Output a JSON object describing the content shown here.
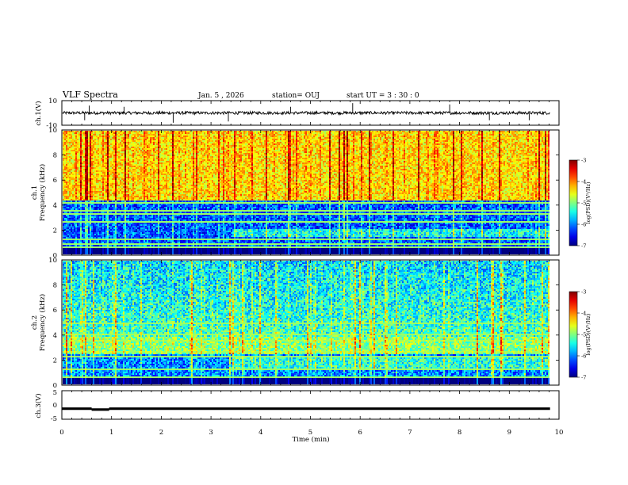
{
  "header": {
    "title": "VLF Spectra",
    "date": "Jan. 5 , 2026",
    "station": "station= OUJ",
    "start": "start  UT  =   3  : 30 : 0"
  },
  "chart_data": [
    {
      "type": "line",
      "name": "ch1-waveform",
      "ylabel": "ch.1(V)",
      "ylim": [
        -10,
        10
      ],
      "ytick_labels": [
        "10",
        "-10"
      ],
      "xlim": [
        0,
        10
      ],
      "baseline": 0,
      "noise_amplitude": 1.2,
      "spikes": [
        {
          "t": 0.46,
          "v": -6
        },
        {
          "t": 0.55,
          "v": 6
        },
        {
          "t": 1.25,
          "v": 5
        },
        {
          "t": 2.24,
          "v": -8
        },
        {
          "t": 3.35,
          "v": -7
        },
        {
          "t": 4.6,
          "v": 5
        },
        {
          "t": 5.85,
          "v": 8
        },
        {
          "t": 7.8,
          "v": 7
        },
        {
          "t": 8.6,
          "v": -6
        },
        {
          "t": 9.4,
          "v": -6
        }
      ]
    },
    {
      "type": "heatmap",
      "name": "ch1-spectrogram",
      "ylabel_lines": [
        "ch.1",
        "Frequency  (kHz)"
      ],
      "ylim": [
        0,
        10
      ],
      "yticks": [
        0,
        2,
        4,
        6,
        8,
        10
      ],
      "xlim": [
        0,
        9.82
      ],
      "colorbar": {
        "min": -7,
        "max": -3,
        "ticks": [
          -3,
          -4,
          -5,
          -6,
          -7
        ],
        "label": "log(PSD)(V²/Hz)"
      },
      "description_levels": {
        "hiss_band_khz": [
          4.3,
          10
        ],
        "hiss_level": -4.4,
        "low_band_level": -6.2,
        "sferic_level": -3.6,
        "lines_khz": [
          0.5,
          0.8,
          1.2,
          2.6,
          3.3,
          3.5,
          4.2
        ]
      }
    },
    {
      "type": "heatmap",
      "name": "ch2-spectrogram",
      "ylabel_lines": [
        "ch.2",
        "Frequency  (kHz)"
      ],
      "ylim": [
        0,
        10
      ],
      "yticks": [
        0,
        2,
        4,
        6,
        8,
        10
      ],
      "xlim": [
        0,
        9.82
      ],
      "colorbar": {
        "min": -7,
        "max": -3,
        "ticks": [
          -3,
          -4,
          -5,
          -6,
          -7
        ],
        "label": "log(PSD)(V²/Hz)"
      },
      "description_levels": {
        "band_khz": [
          2.4,
          3.8
        ],
        "band_level": -5.0,
        "upper_level": -5.3,
        "sferic_level": -3.8,
        "lines_khz": [
          0.5,
          1.2,
          2.2,
          2.6,
          3.5,
          4.0,
          5.0
        ]
      }
    },
    {
      "type": "line",
      "name": "ch3-waveform",
      "ylabel": "ch.3(V)",
      "ylim": [
        -5,
        5
      ],
      "ytick_labels": [
        "5",
        "0",
        "-5"
      ],
      "xlim": [
        0,
        10
      ],
      "baseline": -1.3,
      "segments": [
        {
          "t0": 0,
          "t1": 0.6,
          "v": -1.3
        },
        {
          "t0": 0.6,
          "t1": 0.95,
          "v": -1.6
        },
        {
          "t0": 0.95,
          "t1": 9.82,
          "v": -1.3
        }
      ]
    }
  ],
  "x_axis": {
    "label": "Time  (min)",
    "ticks": [
      "0",
      "1",
      "2",
      "3",
      "4",
      "5",
      "6",
      "7",
      "8",
      "9",
      "10"
    ]
  }
}
